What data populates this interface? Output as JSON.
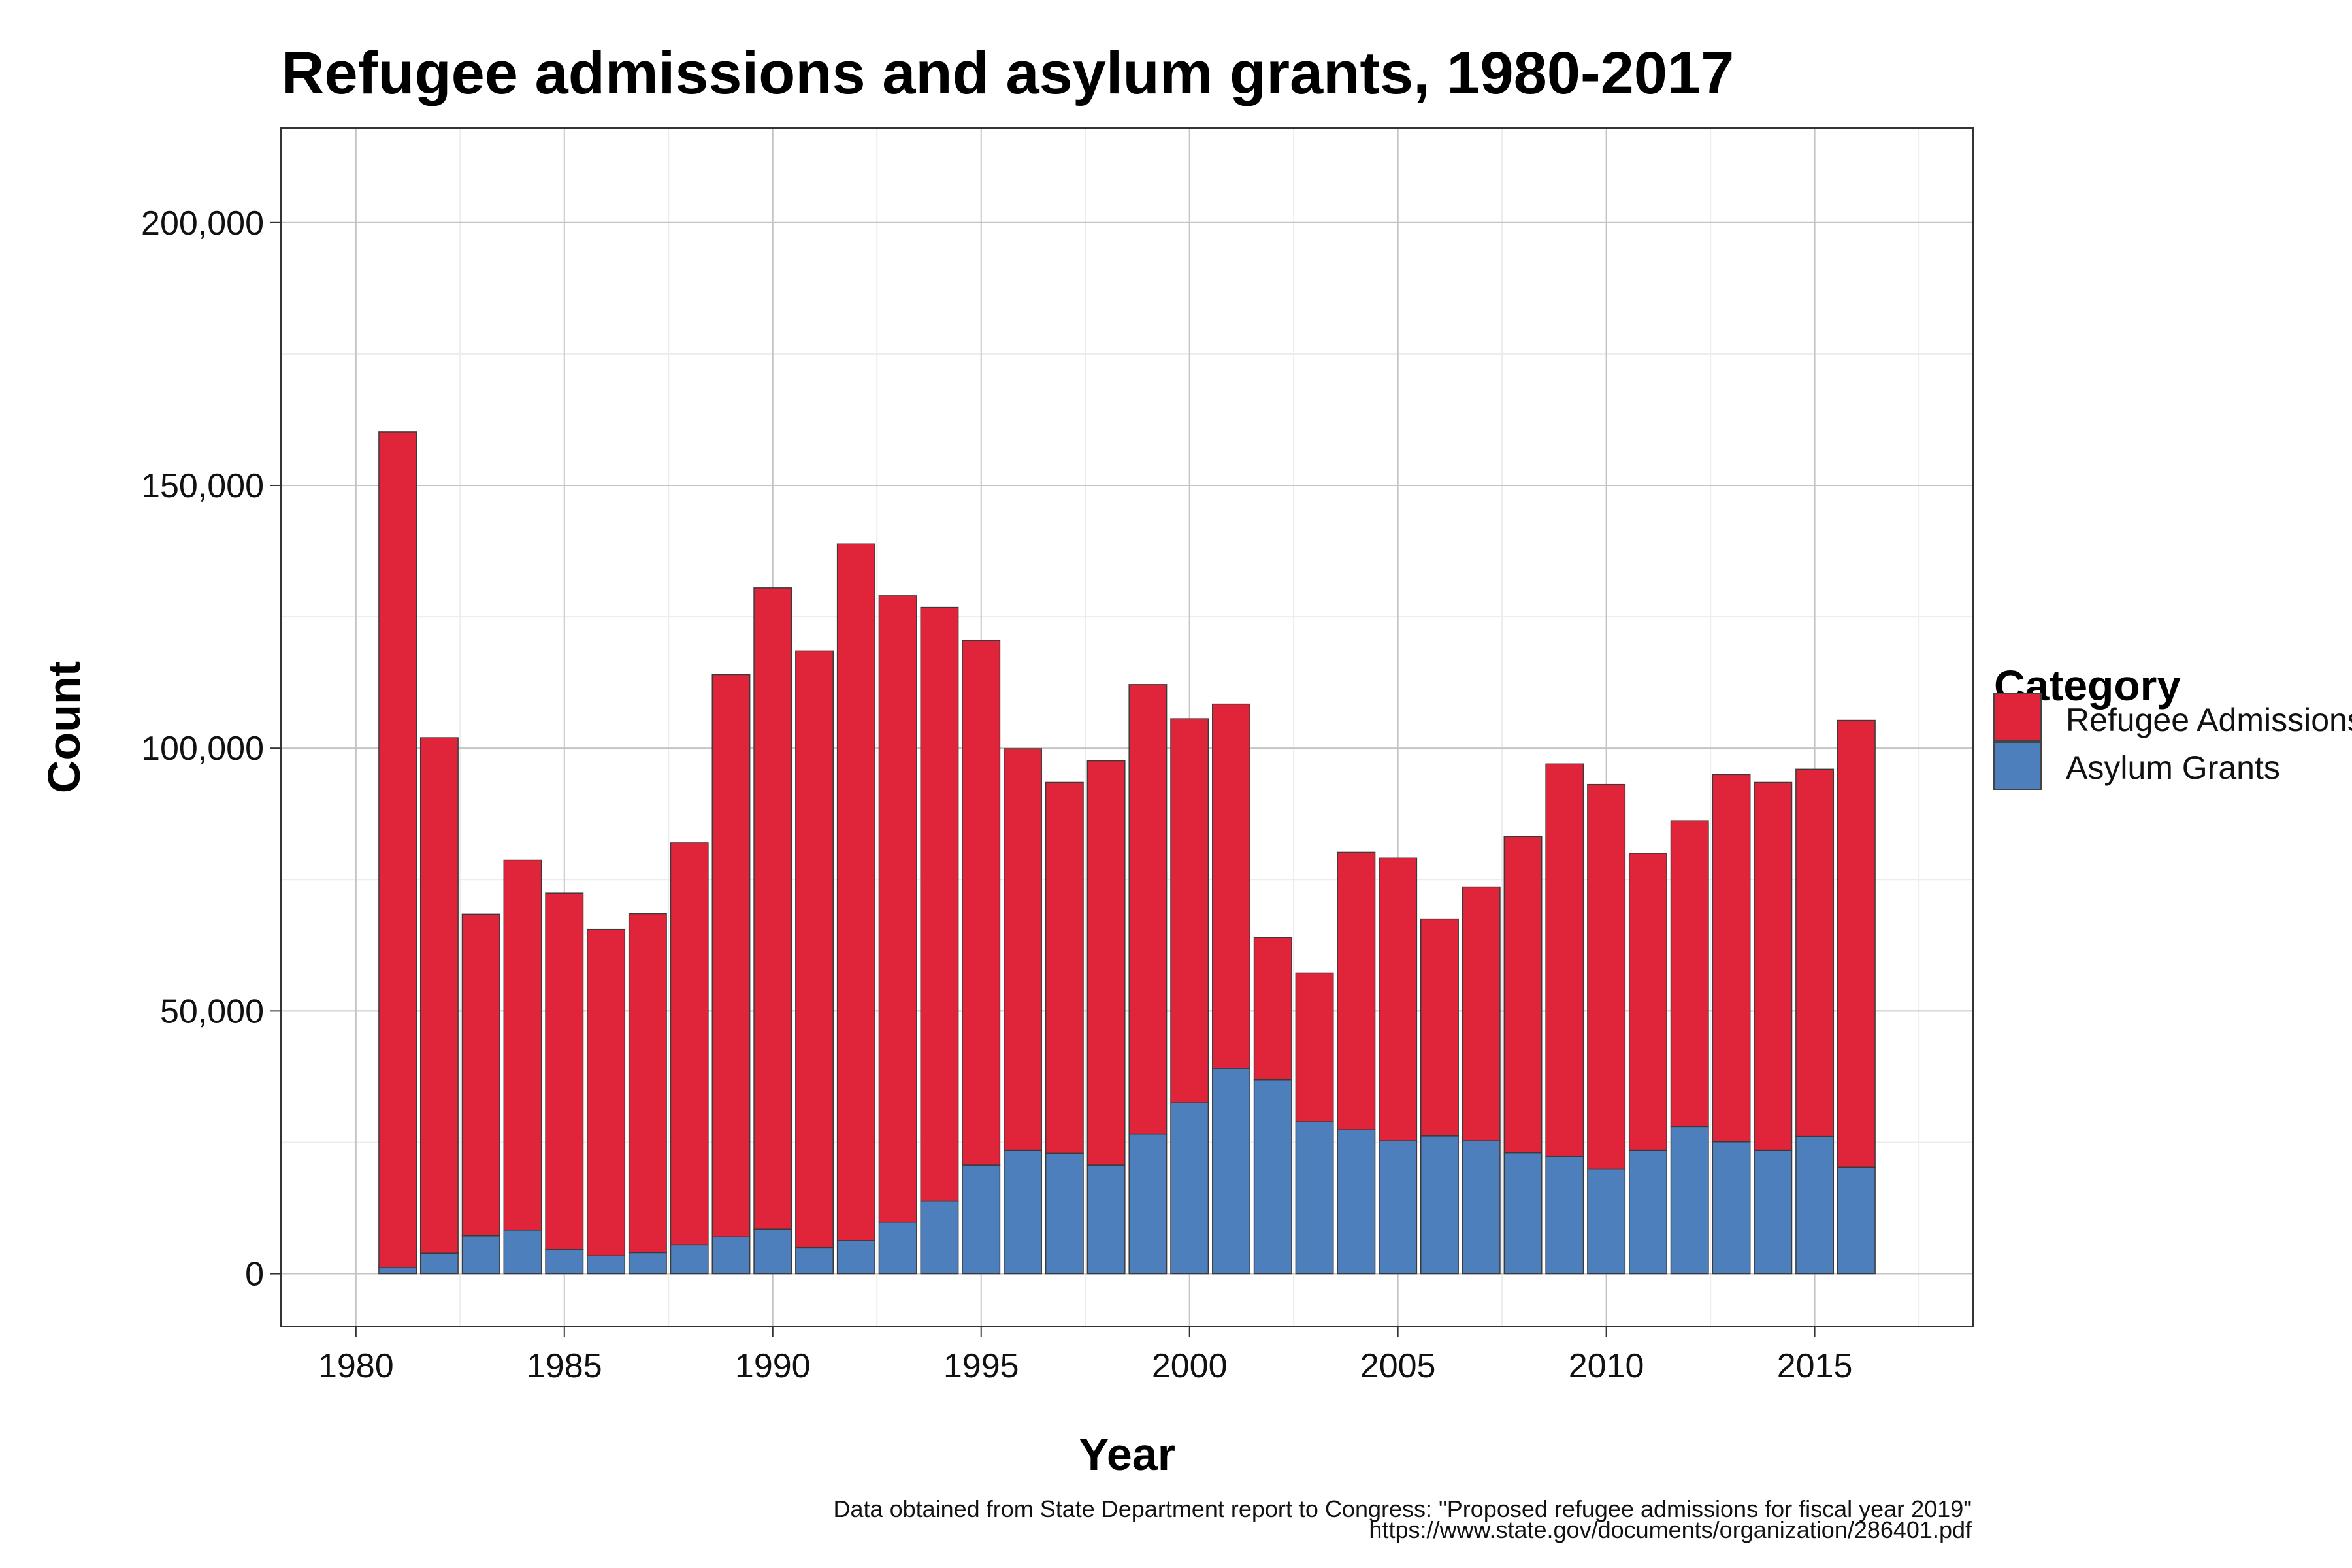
{
  "chart_data": {
    "type": "bar",
    "stacked": true,
    "title": "Refugee admissions and asylum grants, 1980-2017",
    "xlabel": "Year",
    "ylabel": "Count",
    "xlim": [
      1978.2,
      2018.8
    ],
    "ylim": [
      -10000,
      218000
    ],
    "xticks": [
      "1980",
      "1985",
      "1990",
      "1995",
      "2000",
      "2005",
      "2010",
      "2015"
    ],
    "yticks": [
      "0",
      "50,000",
      "100,000",
      "150,000",
      "200,000"
    ],
    "legend": {
      "title": "Category",
      "position": "right"
    },
    "grid": true,
    "years": [
      1981,
      1982,
      1983,
      1984,
      1985,
      1986,
      1987,
      1988,
      1989,
      1990,
      1991,
      1992,
      1993,
      1994,
      1995,
      1996,
      1997,
      1998,
      1999,
      2000,
      2001,
      2002,
      2003,
      2004,
      2005,
      2006,
      2007,
      2008,
      2009,
      2010,
      2011,
      2012,
      2013,
      2014,
      2015,
      2016
    ],
    "series": [
      {
        "name": "Asylum Grants",
        "color": "#4c7fbb",
        "values": [
          1200,
          3900,
          7200,
          8300,
          4600,
          3400,
          4000,
          5500,
          7000,
          8500,
          5000,
          6300,
          9800,
          13800,
          20700,
          23500,
          22900,
          20700,
          26600,
          32500,
          39100,
          36900,
          28900,
          27400,
          25300,
          26200,
          25300,
          23000,
          22300,
          19900,
          23500,
          28000,
          25100,
          23500,
          26100,
          20300
        ]
      },
      {
        "name": "Refugee Admissions",
        "color": "#e0243a",
        "values": [
          159000,
          98100,
          61200,
          70400,
          67800,
          62100,
          64500,
          76500,
          107000,
          122000,
          113500,
          132600,
          119200,
          113000,
          99800,
          76400,
          70600,
          76900,
          85500,
          73100,
          69300,
          27100,
          28300,
          52800,
          53800,
          41300,
          48300,
          60200,
          74700,
          73200,
          56500,
          58200,
          69900,
          70000,
          69900,
          85000
        ]
      }
    ]
  },
  "caption": {
    "line1": "Data obtained from State Department report to Congress: \"Proposed refugee admissions for fiscal year 2019\"",
    "line2": "https://www.state.gov/documents/organization/286401.pdf"
  }
}
